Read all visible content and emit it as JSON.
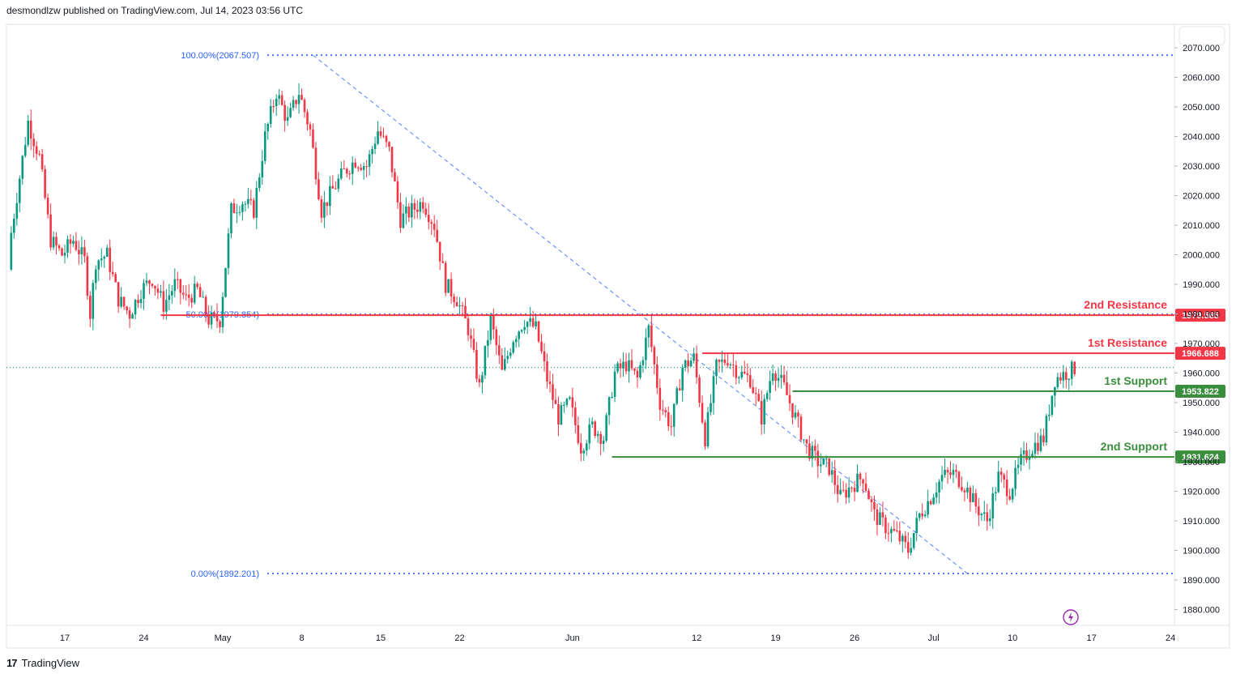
{
  "header": {
    "publish_line": "desmondlzw published on TradingView.com, Jul 14, 2023 03:56 UTC"
  },
  "footer": {
    "brand": "TradingView",
    "logo_mark": "17"
  },
  "chart_data": {
    "type": "candlestick",
    "y_ticks": [
      "2070.000",
      "2060.000",
      "2050.000",
      "2040.000",
      "2030.000",
      "2020.000",
      "2010.000",
      "2000.000",
      "1990.000",
      "1980.000",
      "1970.000",
      "1960.000",
      "1950.000",
      "1940.000",
      "1930.000",
      "1920.000",
      "1910.000",
      "1900.000",
      "1890.000",
      "1880.000"
    ],
    "x_ticks": [
      {
        "label": "17",
        "day": 0
      },
      {
        "label": "24",
        "day": 7
      },
      {
        "label": "May",
        "day": 14
      },
      {
        "label": "8",
        "day": 21
      },
      {
        "label": "15",
        "day": 28
      },
      {
        "label": "22",
        "day": 35
      },
      {
        "label": "Jun",
        "day": 45
      },
      {
        "label": "12",
        "day": 56
      },
      {
        "label": "19",
        "day": 63
      },
      {
        "label": "26",
        "day": 70
      },
      {
        "label": "Jul",
        "day": 77
      },
      {
        "label": "10",
        "day": 84
      },
      {
        "label": "17",
        "day": 91
      },
      {
        "label": "24",
        "day": 98
      }
    ],
    "fib": [
      {
        "label": "100.00%(2067.507)",
        "value": 2067.507
      },
      {
        "label": "50.00%(1979.854)",
        "value": 1979.854
      },
      {
        "label": "0.00%(1892.201)",
        "value": 1892.201
      }
    ],
    "levels": [
      {
        "name": "2nd Resistance",
        "value": 1979.565,
        "label": "1979.565",
        "color": "#f23645",
        "start_day": 8.5
      },
      {
        "name": "1st Resistance",
        "value": 1966.688,
        "label": "1966.688",
        "color": "#f23645",
        "start_day": 56.5
      },
      {
        "name": "1st Support",
        "value": 1953.822,
        "label": "1953.822",
        "color": "#388e3c",
        "start_day": 64.5
      },
      {
        "name": "2nd Support",
        "value": 1931.624,
        "label": "1931.624",
        "color": "#388e3c",
        "start_day": 48.5
      }
    ],
    "trendline": {
      "from": {
        "day": 22,
        "value": 2067.5
      },
      "to": {
        "day": 80,
        "value": 1892.2
      }
    },
    "last_price": 1961.9,
    "colors": {
      "up": "#089981",
      "down": "#f23645",
      "support": "#388e3c",
      "resistance": "#f23645",
      "fib": "#2962ff"
    }
  }
}
